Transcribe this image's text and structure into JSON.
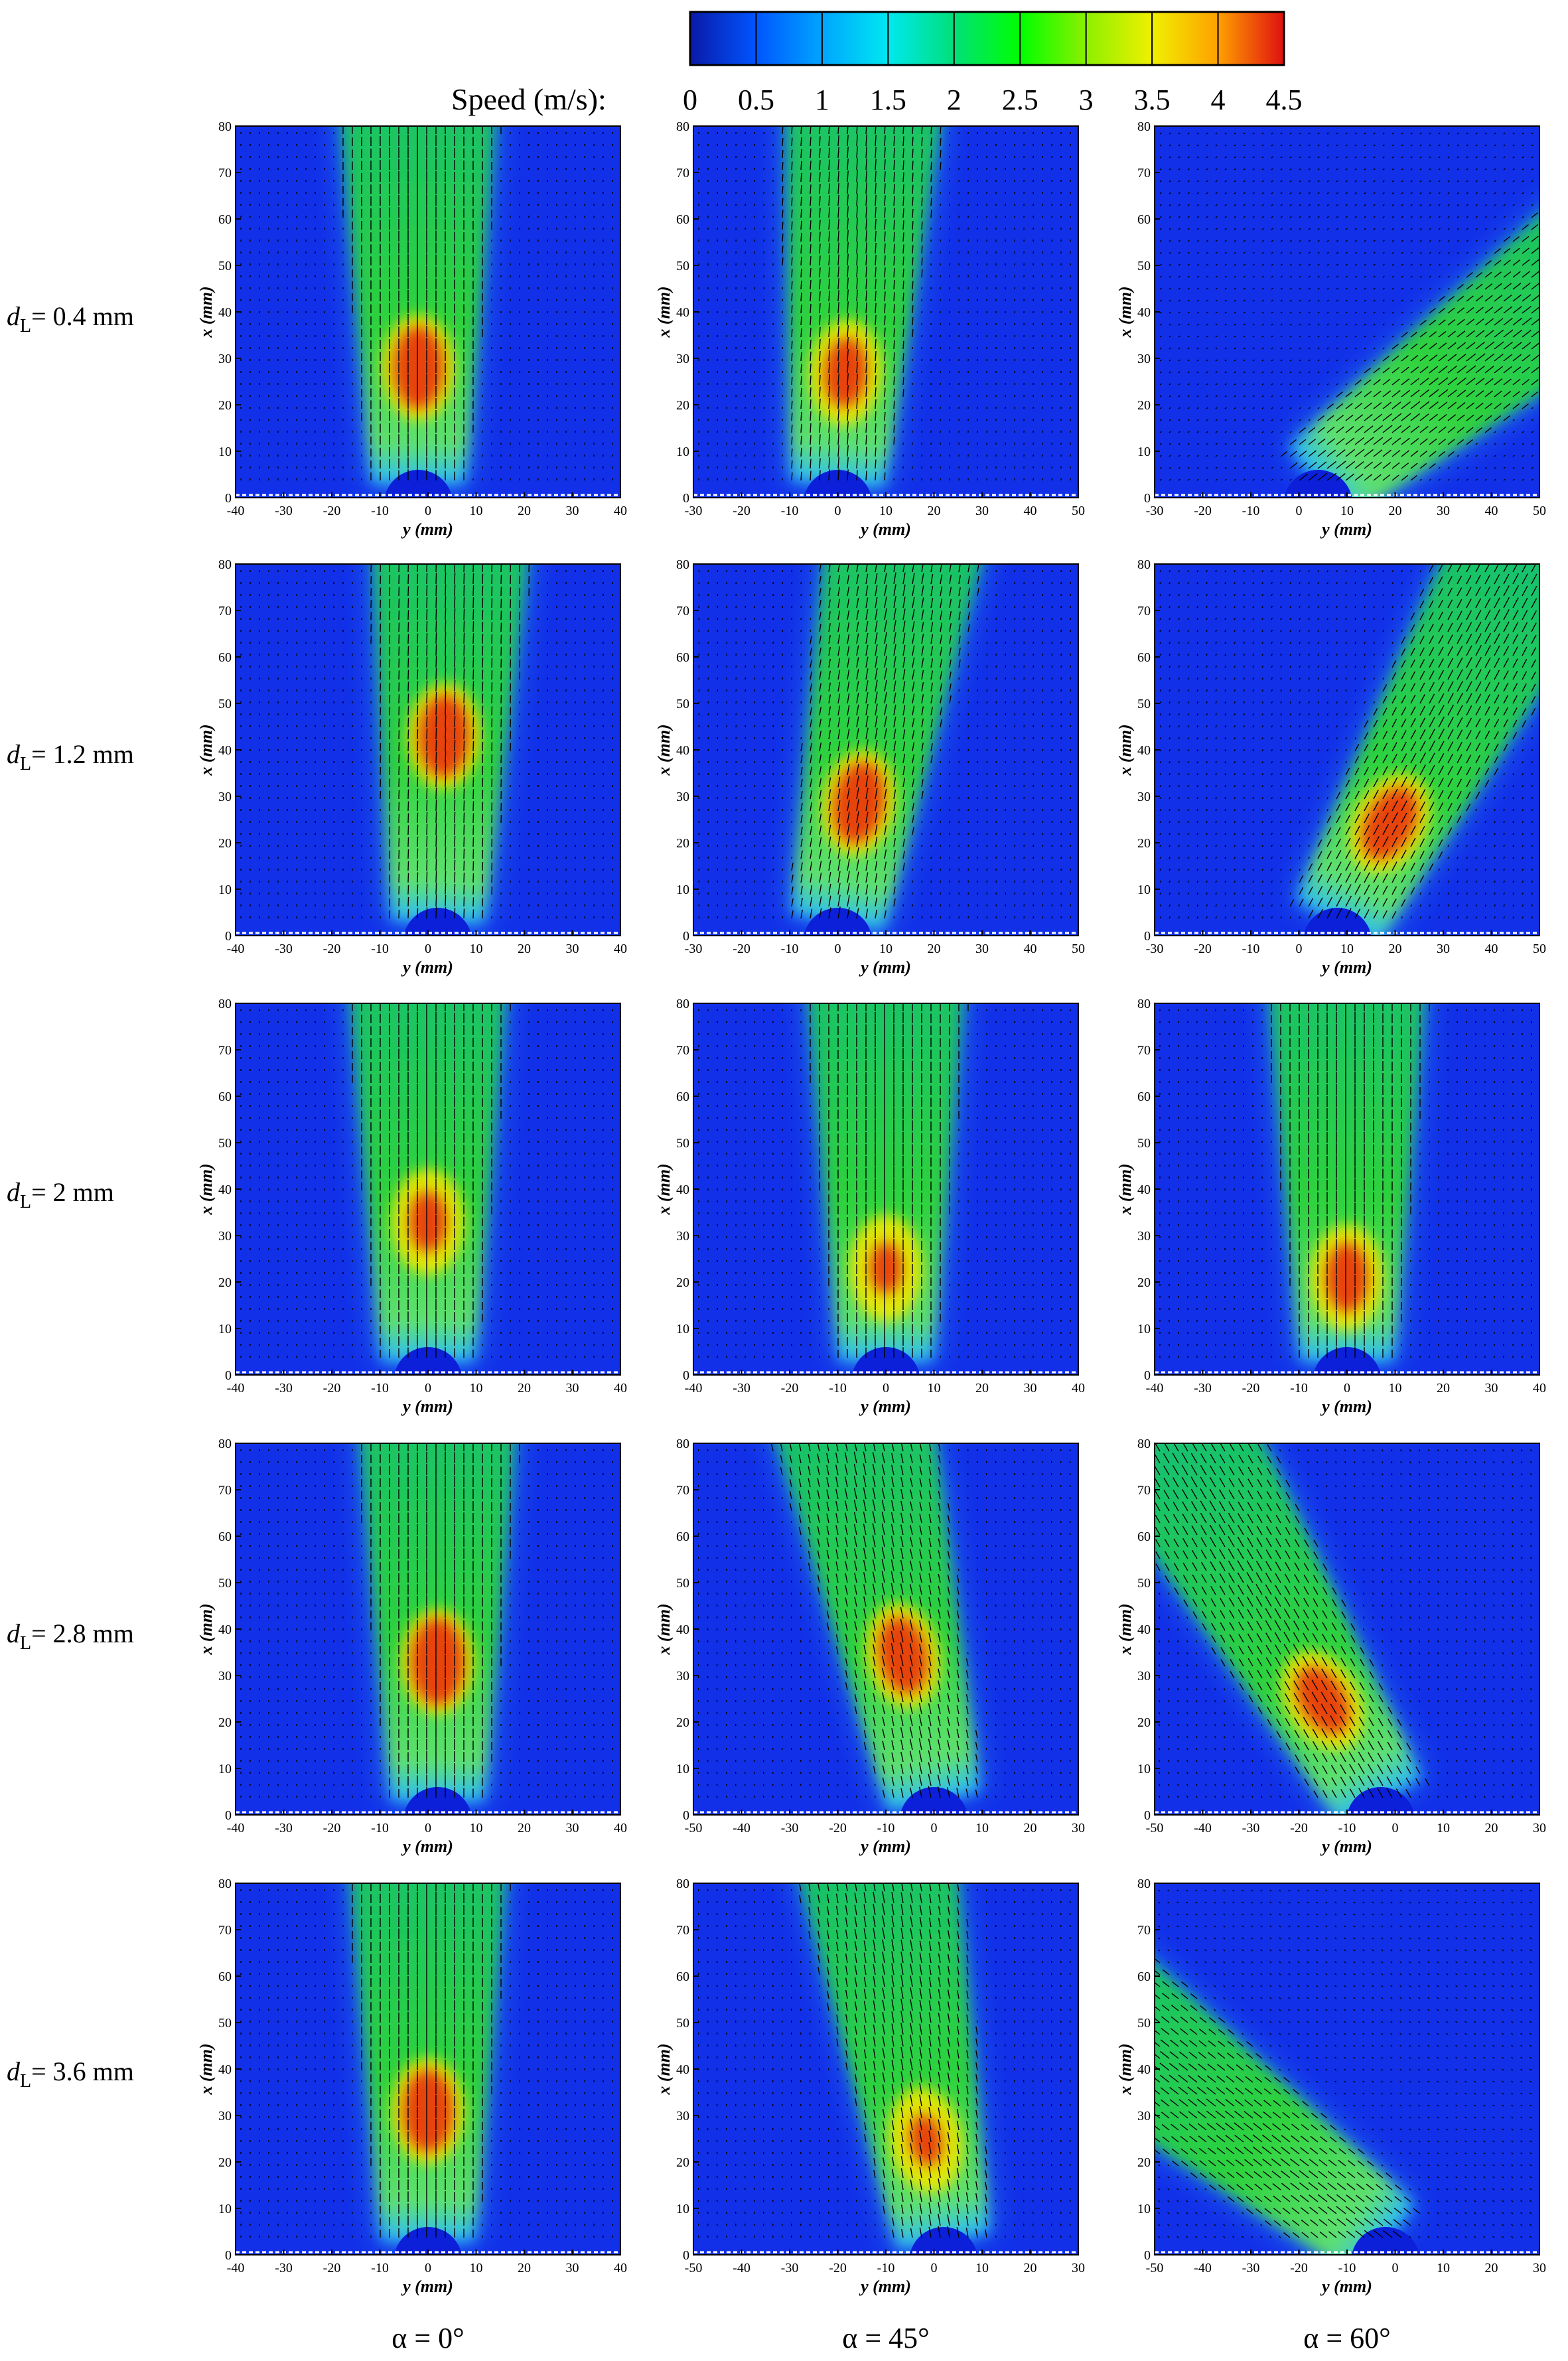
{
  "colorbar": {
    "title": "Speed (m/s):",
    "ticks": [
      "0",
      "0.5",
      "1",
      "1.5",
      "2",
      "2.5",
      "3",
      "3.5",
      "4",
      "4.5"
    ],
    "range": [
      0,
      4.5
    ],
    "colors": [
      "#0a1aa8",
      "#0055ff",
      "#00a5ff",
      "#00e8f0",
      "#00e07a",
      "#00ff00",
      "#8cf000",
      "#f0f000",
      "#ffa000",
      "#e01010"
    ]
  },
  "chart_data": {
    "type": "heatmap",
    "layout": "5 rows x 3 columns of speed contour maps with velocity vectors",
    "quantity": "Speed (m/s)",
    "rows": [
      {
        "label_main": "d",
        "label_sub": "L",
        "label_rest": "= 0.4 mm"
      },
      {
        "label_main": "d",
        "label_sub": "L",
        "label_rest": "= 1.2 mm"
      },
      {
        "label_main": "d",
        "label_sub": "L",
        "label_rest": "= 2 mm"
      },
      {
        "label_main": "d",
        "label_sub": "L",
        "label_rest": "= 2.8 mm"
      },
      {
        "label_main": "d",
        "label_sub": "L",
        "label_rest": "= 3.6 mm"
      }
    ],
    "columns": [
      {
        "label": "α = 0°"
      },
      {
        "label": "α = 45°"
      },
      {
        "label": "α = 60°"
      }
    ],
    "xlabel": "y (mm)",
    "ylabel": "x (mm)",
    "ylim": [
      0,
      80
    ],
    "yticks": [
      "0",
      "10",
      "20",
      "30",
      "40",
      "50",
      "60",
      "70",
      "80"
    ],
    "panels": [
      {
        "row": 0,
        "col": 0,
        "xlim": [
          -40,
          40
        ],
        "xticks": [
          "-40",
          "-30",
          "-20",
          "-10",
          "0",
          "10",
          "20",
          "30",
          "40"
        ],
        "jet_angle_deg": 0,
        "bubble_y": -2,
        "max_speed": 4.5,
        "peak_x": 25
      },
      {
        "row": 0,
        "col": 1,
        "xlim": [
          -30,
          50
        ],
        "xticks": [
          "-30",
          "-20",
          "-10",
          "0",
          "10",
          "20",
          "30",
          "40",
          "50"
        ],
        "jet_angle_deg": -4,
        "bubble_y": 0,
        "max_speed": 4.2,
        "peak_x": 24
      },
      {
        "row": 0,
        "col": 2,
        "xlim": [
          -30,
          50
        ],
        "xticks": [
          "-30",
          "-20",
          "-10",
          "0",
          "10",
          "20",
          "30",
          "40",
          "50"
        ],
        "jet_angle_deg": -52,
        "bubble_y": 4,
        "max_speed": 2.8,
        "peak_x": 20
      },
      {
        "row": 1,
        "col": 0,
        "xlim": [
          -40,
          40
        ],
        "xticks": [
          "-40",
          "-30",
          "-20",
          "-10",
          "0",
          "10",
          "20",
          "30",
          "40"
        ],
        "jet_angle_deg": -2,
        "bubble_y": 2,
        "max_speed": 4.5,
        "peak_x": 40
      },
      {
        "row": 1,
        "col": 1,
        "xlim": [
          -30,
          50
        ],
        "xticks": [
          "-30",
          "-20",
          "-10",
          "0",
          "10",
          "20",
          "30",
          "40",
          "50"
        ],
        "jet_angle_deg": -10,
        "bubble_y": 0,
        "max_speed": 4.5,
        "peak_x": 26
      },
      {
        "row": 1,
        "col": 2,
        "xlim": [
          -30,
          50
        ],
        "xticks": [
          "-30",
          "-20",
          "-10",
          "0",
          "10",
          "20",
          "30",
          "40",
          "50"
        ],
        "jet_angle_deg": -28,
        "bubble_y": 8,
        "max_speed": 4.4,
        "peak_x": 24
      },
      {
        "row": 2,
        "col": 0,
        "xlim": [
          -40,
          40
        ],
        "xticks": [
          "-40",
          "-30",
          "-20",
          "-10",
          "0",
          "10",
          "20",
          "30",
          "40"
        ],
        "jet_angle_deg": 0,
        "bubble_y": 0,
        "max_speed": 4.0,
        "peak_x": 30
      },
      {
        "row": 2,
        "col": 1,
        "xlim": [
          -40,
          40
        ],
        "xticks": [
          "-40",
          "-30",
          "-20",
          "-10",
          "0",
          "10",
          "20",
          "30",
          "40"
        ],
        "jet_angle_deg": 0,
        "bubble_y": 0,
        "max_speed": 3.8,
        "peak_x": 20
      },
      {
        "row": 2,
        "col": 2,
        "xlim": [
          -40,
          40
        ],
        "xticks": [
          "-40",
          "-30",
          "-20",
          "-10",
          "0",
          "10",
          "20",
          "30",
          "40"
        ],
        "jet_angle_deg": 0,
        "bubble_y": 0,
        "max_speed": 4.2,
        "peak_x": 18
      },
      {
        "row": 3,
        "col": 0,
        "xlim": [
          -40,
          40
        ],
        "xticks": [
          "-40",
          "-30",
          "-20",
          "-10",
          "0",
          "10",
          "20",
          "30",
          "40"
        ],
        "jet_angle_deg": 0,
        "bubble_y": 2,
        "max_speed": 4.6,
        "peak_x": 30
      },
      {
        "row": 3,
        "col": 1,
        "xlim": [
          -50,
          30
        ],
        "xticks": [
          "-50",
          "-40",
          "-30",
          "-20",
          "-10",
          "0",
          "10",
          "20",
          "30"
        ],
        "jet_angle_deg": 12,
        "bubble_y": 0,
        "max_speed": 4.4,
        "peak_x": 32
      },
      {
        "row": 3,
        "col": 2,
        "xlim": [
          -50,
          30
        ],
        "xticks": [
          "-50",
          "-40",
          "-30",
          "-20",
          "-10",
          "0",
          "10",
          "20",
          "30"
        ],
        "jet_angle_deg": 30,
        "bubble_y": -3,
        "max_speed": 4.3,
        "peak_x": 25
      },
      {
        "row": 4,
        "col": 0,
        "xlim": [
          -40,
          40
        ],
        "xticks": [
          "-40",
          "-30",
          "-20",
          "-10",
          "0",
          "10",
          "20",
          "30",
          "40"
        ],
        "jet_angle_deg": 0,
        "bubble_y": 0,
        "max_speed": 4.5,
        "peak_x": 28
      },
      {
        "row": 4,
        "col": 1,
        "xlim": [
          -50,
          30
        ],
        "xticks": [
          "-50",
          "-40",
          "-30",
          "-20",
          "-10",
          "0",
          "10",
          "20",
          "30"
        ],
        "jet_angle_deg": 10,
        "bubble_y": 2,
        "max_speed": 3.8,
        "peak_x": 22
      },
      {
        "row": 4,
        "col": 2,
        "xlim": [
          -50,
          30
        ],
        "xticks": [
          "-50",
          "-40",
          "-30",
          "-20",
          "-10",
          "0",
          "10",
          "20",
          "30"
        ],
        "jet_angle_deg": 52,
        "bubble_y": -2,
        "max_speed": 2.6,
        "peak_x": 12
      }
    ]
  }
}
